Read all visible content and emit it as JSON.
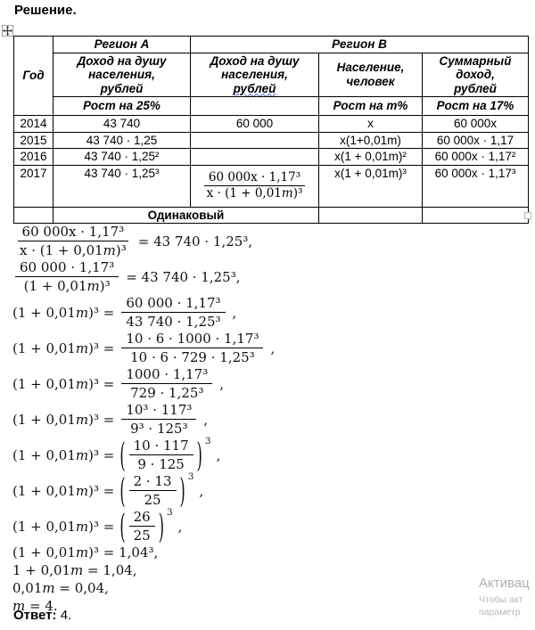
{
  "page": {
    "title": "Решение.",
    "answer_label": "Ответ:",
    "answer_value": "4."
  },
  "table": {
    "year_header": "Год",
    "region_a": "Регион А",
    "region_b": "Регион В",
    "income_a_header": "Доход на душу населения, рублей",
    "income_b_header_main": "Доход на душу населения,",
    "income_b_header_underlined": "рублей",
    "population_header": "Население, человек",
    "total_income_header": "Суммарный доход, рублей",
    "growth_a": "Рост на 25%",
    "growth_population": "Рост на m%",
    "growth_total": "Рост на 17%",
    "rows": [
      {
        "year": "2014",
        "a": "43 740",
        "b": "60 000",
        "pop": "x",
        "total": "60 000x"
      },
      {
        "year": "2015",
        "a": "43 740 · 1,25",
        "b": "",
        "pop": "x(1+0,01m)",
        "total": "60 000x · 1,17"
      },
      {
        "year": "2016",
        "a": "43 740 · 1,25²",
        "b": "",
        "pop": "x(1 + 0,01m)²",
        "total": "60 000x · 1,17²"
      },
      {
        "year": "2017",
        "a": "43 740 · 1,25³",
        "b_frac": {
          "num": "60 000x · 1,17³",
          "den": "x · (1 + 0,01m)³"
        },
        "pop": "x(1 + 0,01m)³",
        "total": "60 000x · 1,17³"
      }
    ],
    "same_label": "Одинаковый"
  },
  "equations": [
    {
      "type": "frac",
      "pre": "",
      "num": "60 000x · 1,17³",
      "den": "x · (1 + 0,01m)³",
      "paren": false,
      "exp": "",
      "post": "= 43 740 · 1,25³,"
    },
    {
      "type": "frac",
      "pre": "",
      "num": "60 000 · 1,17³",
      "den": "(1 + 0,01m)³",
      "paren": false,
      "exp": "",
      "post": "= 43 740 · 1,25³,"
    },
    {
      "type": "frac",
      "pre": "(1 + 0,01m)³ =",
      "num": "60 000 · 1,17³",
      "den": "43 740 · 1,25³",
      "paren": false,
      "exp": "",
      "post": ","
    },
    {
      "type": "frac",
      "pre": "(1 + 0,01m)³ =",
      "num": "10 · 6 · 1000 · 1,17³",
      "den": "10 · 6 · 729 · 1,25³",
      "paren": false,
      "exp": "",
      "post": ","
    },
    {
      "type": "frac",
      "pre": "(1 + 0,01m)³ =",
      "num": "1000 · 1,17³",
      "den": "729 · 1,25³",
      "paren": false,
      "exp": "",
      "post": ","
    },
    {
      "type": "frac",
      "pre": "(1 + 0,01m)³ =",
      "num": "10³ · 117³",
      "den": "9³ · 125³",
      "paren": false,
      "exp": "",
      "post": ","
    },
    {
      "type": "frac",
      "pre": "(1 + 0,01m)³ =",
      "num": "10 · 117",
      "den": "9 · 125",
      "paren": true,
      "exp": "3",
      "post": ","
    },
    {
      "type": "frac",
      "pre": "(1 + 0,01m)³ =",
      "num": "2 · 13",
      "den": "25",
      "paren": true,
      "exp": "3",
      "post": ","
    },
    {
      "type": "frac",
      "pre": "(1 + 0,01m)³ =",
      "num": "26",
      "den": "25",
      "paren": true,
      "exp": "3",
      "post": ","
    },
    {
      "type": "plain",
      "text": "(1 + 0,01m)³ = 1,04³,"
    },
    {
      "type": "plain",
      "text": "1 + 0,01m = 1,04,"
    },
    {
      "type": "plain",
      "text": "0,01m = 0,04,"
    },
    {
      "type": "plain",
      "text": "m = 4."
    }
  ],
  "watermark": {
    "line1": "Активац",
    "line2": "Чтобы акт",
    "line3": "параметр"
  }
}
